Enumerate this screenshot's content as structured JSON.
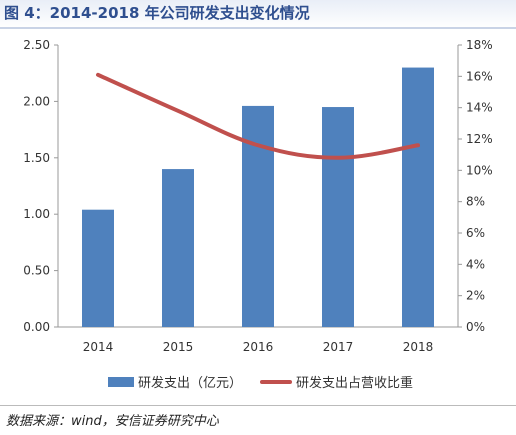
{
  "title": "图 4：2014-2018 年公司研发支出变化情况",
  "source": "数据来源：wind，安信证券研究中心",
  "chart_data": {
    "type": "bar",
    "categories": [
      "2014",
      "2015",
      "2016",
      "2017",
      "2018"
    ],
    "series": [
      {
        "name": "研发支出（亿元）",
        "type": "bar",
        "axis": "left",
        "values": [
          1.04,
          1.4,
          1.96,
          1.95,
          2.3
        ],
        "color": "#4f81bd"
      },
      {
        "name": "研发支出占营收比重",
        "type": "line",
        "axis": "right",
        "values": [
          16.1,
          13.8,
          11.6,
          10.8,
          11.6
        ],
        "color": "#c0504d"
      }
    ],
    "y_left": {
      "ylim": [
        0,
        2.5
      ],
      "ticks": [
        "0.00",
        "0.50",
        "1.00",
        "1.50",
        "2.00",
        "2.50"
      ]
    },
    "y_right": {
      "ylim": [
        0,
        18
      ],
      "ticks": [
        "0%",
        "2%",
        "4%",
        "6%",
        "8%",
        "10%",
        "12%",
        "14%",
        "16%",
        "18%"
      ]
    },
    "grid": false,
    "legend_position": "bottom"
  }
}
